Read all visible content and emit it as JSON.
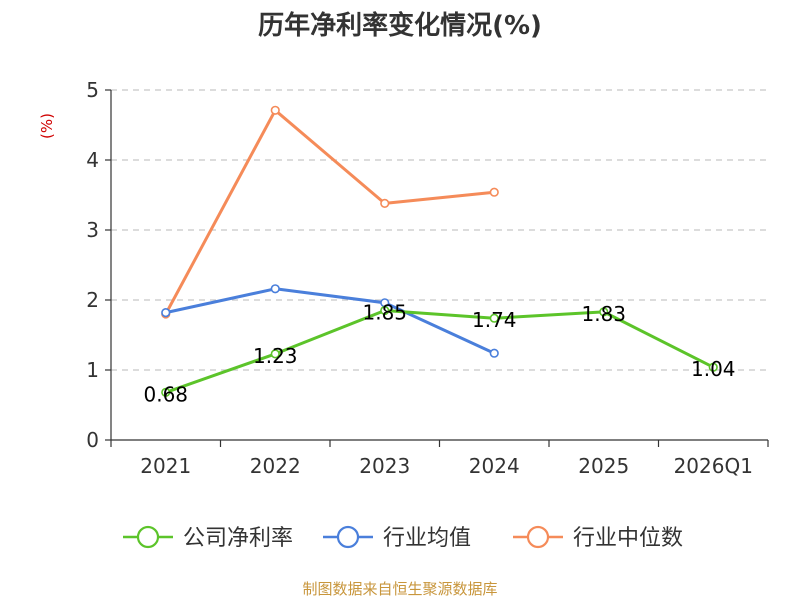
{
  "chart_data": {
    "type": "line",
    "title": "历年净利率变化情况(%)",
    "ylabel": "(%)",
    "xlabel": "",
    "ylim": [
      0,
      5
    ],
    "yticks": [
      0,
      1,
      2,
      3,
      4,
      5
    ],
    "categories": [
      "2021",
      "2022",
      "2023",
      "2024",
      "2025",
      "2026Q1"
    ],
    "grid": true,
    "legend_position": "bottom",
    "series": [
      {
        "name": "公司净利率",
        "color": "#5cc42a",
        "values": [
          0.68,
          1.23,
          1.85,
          1.74,
          1.83,
          1.04
        ],
        "labels": [
          "0.68",
          "1.23",
          "1.85",
          "1.74",
          "1.83",
          "1.04"
        ]
      },
      {
        "name": "行业均值",
        "color": "#4a7fdb",
        "values": [
          1.82,
          2.16,
          1.96,
          1.24,
          null,
          null
        ]
      },
      {
        "name": "行业中位数",
        "color": "#f58b59",
        "values": [
          1.8,
          4.71,
          3.38,
          3.54,
          null,
          null
        ]
      }
    ]
  },
  "footer": {
    "source": "制图数据来自恒生聚源数据库"
  }
}
